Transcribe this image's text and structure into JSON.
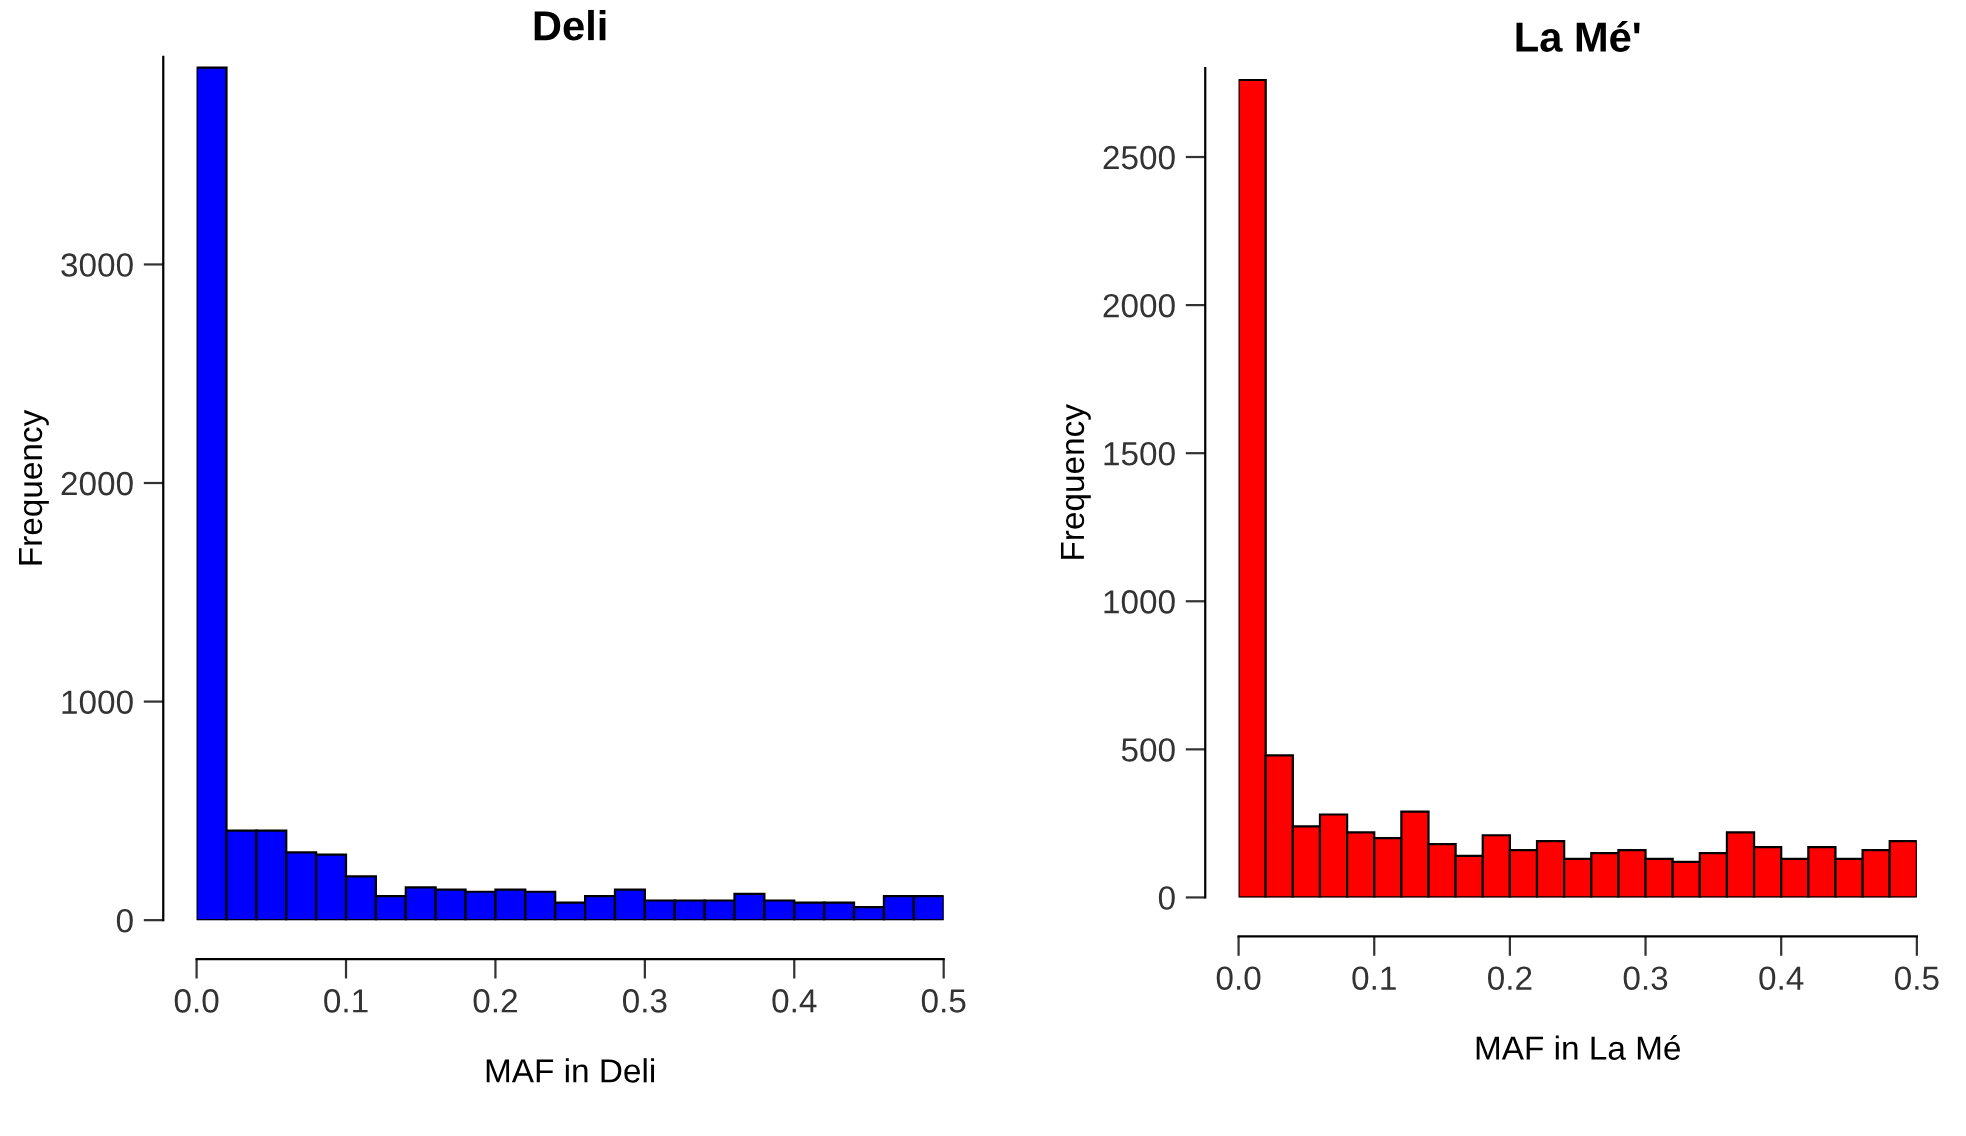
{
  "chart_data": [
    {
      "type": "histogram",
      "title": "Deli",
      "xlabel": "MAF in Deli",
      "ylabel": "Frequency",
      "color": "#0000ff",
      "bins": [
        0,
        0.02,
        0.04,
        0.06,
        0.08,
        0.1,
        0.12,
        0.14,
        0.16,
        0.18,
        0.2,
        0.22,
        0.24,
        0.26,
        0.28,
        0.3,
        0.32,
        0.34,
        0.36,
        0.38,
        0.4,
        0.42,
        0.44,
        0.46,
        0.48,
        0.5
      ],
      "values": [
        3900,
        410,
        410,
        310,
        300,
        200,
        110,
        150,
        140,
        130,
        140,
        130,
        80,
        110,
        140,
        90,
        90,
        90,
        120,
        90,
        80,
        80,
        60,
        110,
        110
      ],
      "xlim": [
        0,
        0.5
      ],
      "ylim": [
        0,
        3950
      ],
      "xticks": [
        {
          "value": 0,
          "label": "0.0"
        },
        0.1,
        0.2,
        0.3,
        0.4,
        0.5
      ],
      "yticks": [
        0,
        1000,
        2000,
        3000
      ],
      "grid": false
    },
    {
      "type": "histogram",
      "title": "La Mé'",
      "xlabel": "MAF in La Mé",
      "ylabel": "Frequency",
      "color": "#ff0000",
      "bins": [
        0,
        0.02,
        0.04,
        0.06,
        0.08,
        0.1,
        0.12,
        0.14,
        0.16,
        0.18,
        0.2,
        0.22,
        0.24,
        0.26,
        0.28,
        0.3,
        0.32,
        0.34,
        0.36,
        0.38,
        0.4,
        0.42,
        0.44,
        0.46,
        0.48,
        0.5
      ],
      "values": [
        2760,
        480,
        240,
        280,
        220,
        200,
        290,
        180,
        140,
        210,
        160,
        190,
        130,
        150,
        160,
        130,
        120,
        150,
        220,
        170,
        130,
        170,
        130,
        160,
        190
      ],
      "xlim": [
        0,
        0.5
      ],
      "ylim": [
        0,
        2800
      ],
      "xticks": [
        {
          "value": 0,
          "label": "0.0"
        },
        0.1,
        0.2,
        0.3,
        0.4,
        0.5
      ],
      "yticks": [
        0,
        500,
        1000,
        1500,
        2000,
        2500
      ],
      "grid": false
    }
  ]
}
